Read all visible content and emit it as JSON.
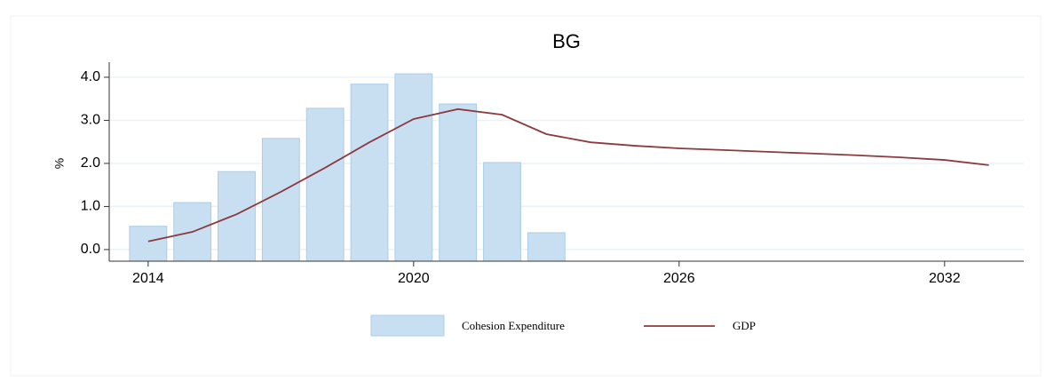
{
  "chart_data": {
    "type": "combo",
    "title": "BG",
    "y_label": "%",
    "x": [
      2014,
      2015,
      2016,
      2017,
      2018,
      2019,
      2020,
      2021,
      2022,
      2023,
      2024,
      2025,
      2026,
      2027,
      2028,
      2029,
      2030,
      2031,
      2032,
      2033
    ],
    "series": [
      {
        "name": "Cohesion Expenditure",
        "type": "bar",
        "color": "#c8dff2",
        "values": [
          0.54,
          1.09,
          1.81,
          2.58,
          3.28,
          3.84,
          4.08,
          3.38,
          2.02,
          0.39,
          null,
          null,
          null,
          null,
          null,
          null,
          null,
          null,
          null,
          null
        ]
      },
      {
        "name": "GDP",
        "type": "line",
        "color": "#8b3a3e",
        "values": [
          0.19,
          0.41,
          0.82,
          1.34,
          1.9,
          2.49,
          3.03,
          3.26,
          3.13,
          2.68,
          2.49,
          2.41,
          2.35,
          2.31,
          2.27,
          2.23,
          2.19,
          2.14,
          2.08,
          1.96
        ]
      }
    ],
    "xlim": [
      2013.12,
      2033.79
    ],
    "xticks": [
      2014,
      2020,
      2026,
      2032
    ],
    "ylim": [
      -0.27,
      4.35
    ],
    "yticks": [
      {
        "value": 0,
        "label": "0.0"
      },
      {
        "value": 1,
        "label": "1.0"
      },
      {
        "value": 2,
        "label": "2.0"
      },
      {
        "value": 3,
        "label": "3.0"
      },
      {
        "value": 4,
        "label": "4.0"
      }
    ],
    "grid": true
  }
}
